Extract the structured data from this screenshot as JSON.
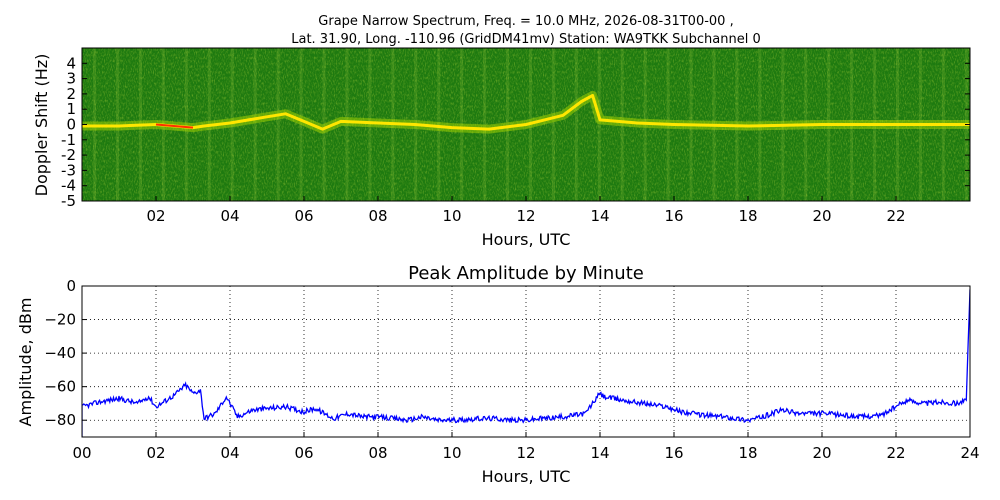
{
  "chart_data": [
    {
      "type": "heatmap",
      "title_line1": "Grape Narrow Spectrum, Freq. = 10.0 MHz, 2026-08-31T00-00 ,",
      "title_line2": "Lat.  31.90, Long. -110.96 (GridDM41mv) Station: WA9TKK Subchannel 0",
      "xlabel": "Hours, UTC",
      "ylabel": "Doppler Shift (Hz)",
      "xlim": [
        0,
        24
      ],
      "ylim": [
        -5,
        5
      ],
      "x_ticks": [
        2,
        4,
        6,
        8,
        10,
        12,
        14,
        16,
        18,
        20,
        22
      ],
      "x_tick_labels": [
        "02",
        "04",
        "06",
        "08",
        "10",
        "12",
        "14",
        "16",
        "18",
        "20",
        "22"
      ],
      "y_ticks": [
        4,
        3,
        2,
        1,
        0,
        -1,
        -2,
        -3,
        -4,
        -5
      ],
      "y_tick_labels": [
        "4",
        "3",
        "2",
        "1",
        "0",
        "-1",
        "-2",
        "-3",
        "-4",
        "-5"
      ],
      "colors": {
        "background": "#1e7a10",
        "signal_low": "#c8e000",
        "signal_high": "#ff2000"
      },
      "carrier_trace": [
        [
          0.0,
          -0.1
        ],
        [
          1.0,
          -0.1
        ],
        [
          2.0,
          0.0
        ],
        [
          3.0,
          -0.2
        ],
        [
          3.3,
          -0.1
        ],
        [
          4.0,
          0.1
        ],
        [
          5.0,
          0.5
        ],
        [
          5.5,
          0.7
        ],
        [
          6.0,
          0.2
        ],
        [
          6.5,
          -0.3
        ],
        [
          7.0,
          0.2
        ],
        [
          8.0,
          0.1
        ],
        [
          9.0,
          0.0
        ],
        [
          10.0,
          -0.2
        ],
        [
          11.0,
          -0.3
        ],
        [
          12.0,
          0.0
        ],
        [
          12.5,
          0.3
        ],
        [
          13.0,
          0.6
        ],
        [
          13.5,
          1.5
        ],
        [
          13.8,
          1.9
        ],
        [
          14.0,
          0.3
        ],
        [
          15.0,
          0.1
        ],
        [
          16.0,
          0.0
        ],
        [
          18.0,
          -0.1
        ],
        [
          20.0,
          0.0
        ],
        [
          22.0,
          0.0
        ],
        [
          24.0,
          0.0
        ]
      ]
    },
    {
      "type": "line",
      "title": "Peak Amplitude by Minute",
      "xlabel": "Hours, UTC",
      "ylabel": "Amplitude, dBm",
      "xlim": [
        0,
        24
      ],
      "ylim": [
        -90,
        0
      ],
      "grid": true,
      "x_ticks": [
        0,
        2,
        4,
        6,
        8,
        10,
        12,
        14,
        16,
        18,
        20,
        22,
        24
      ],
      "x_tick_labels": [
        "00",
        "02",
        "04",
        "06",
        "08",
        "10",
        "12",
        "14",
        "16",
        "18",
        "20",
        "22",
        "24"
      ],
      "y_ticks": [
        0,
        -20,
        -40,
        -60,
        -80
      ],
      "y_tick_labels": [
        "0",
        "−20",
        "−40",
        "−60",
        "−80"
      ],
      "series_color": "#0000ff",
      "x": [
        0.0,
        0.5,
        1.0,
        1.5,
        1.8,
        2.0,
        2.5,
        2.8,
        3.0,
        3.2,
        3.3,
        3.6,
        3.9,
        4.2,
        4.6,
        5.0,
        5.5,
        6.0,
        6.3,
        6.8,
        7.2,
        7.6,
        8.0,
        8.8,
        9.2,
        9.6,
        10.0,
        10.8,
        11.2,
        11.6,
        12.0,
        12.4,
        13.0,
        13.6,
        14.0,
        14.1,
        14.6,
        15.2,
        15.8,
        16.2,
        16.8,
        17.4,
        18.0,
        18.4,
        18.9,
        19.4,
        20.0,
        20.6,
        21.0,
        21.6,
        22.0,
        22.3,
        22.8,
        23.2,
        23.6,
        23.9,
        24.0
      ],
      "y": [
        -72,
        -69,
        -67,
        -70,
        -66,
        -72,
        -65,
        -59,
        -64,
        -62,
        -79,
        -76,
        -66,
        -78,
        -74,
        -73,
        -72,
        -75,
        -73,
        -79,
        -76,
        -78,
        -78,
        -80,
        -78,
        -80,
        -80,
        -79,
        -79,
        -80,
        -80,
        -79,
        -78,
        -76,
        -64,
        -66,
        -68,
        -70,
        -72,
        -75,
        -77,
        -78,
        -80,
        -78,
        -74,
        -76,
        -76,
        -77,
        -78,
        -77,
        -72,
        -68,
        -70,
        -69,
        -70,
        -68,
        -2
      ]
    }
  ]
}
